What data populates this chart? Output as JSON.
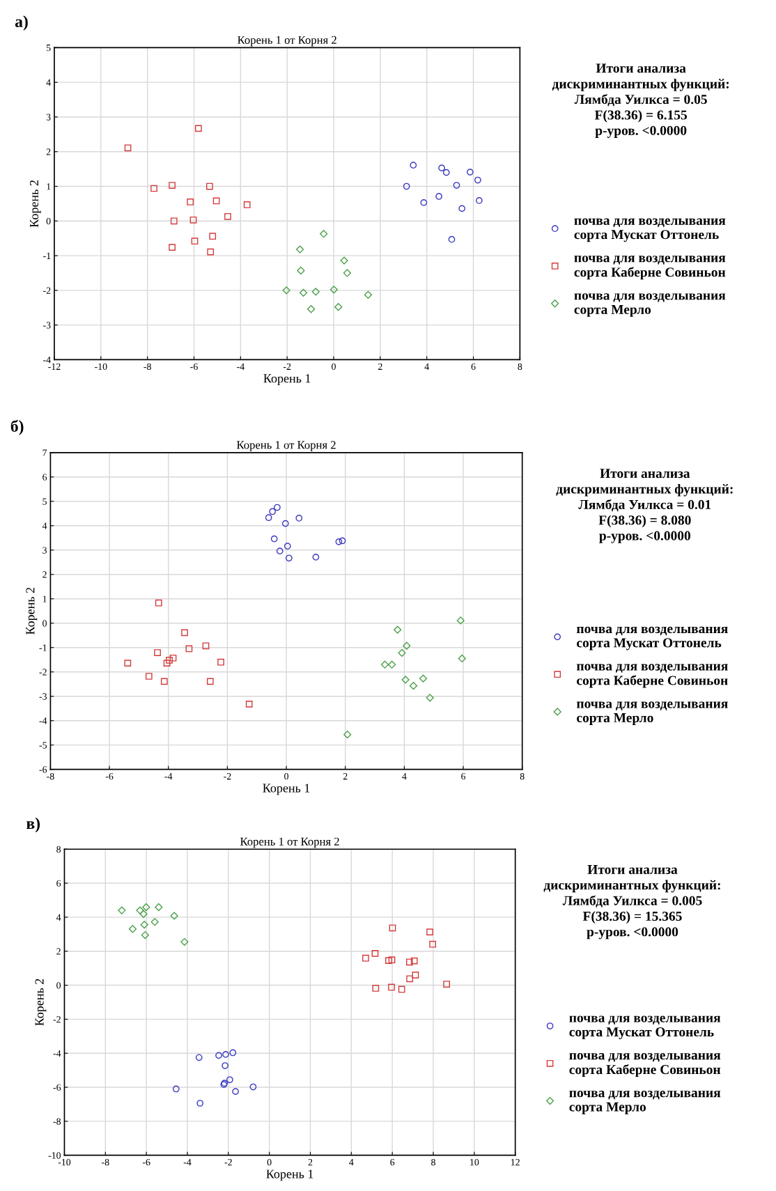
{
  "chart_data": [
    {
      "type": "scatter",
      "title": "Корень 1 от Корня 2",
      "xlabel": "Корень 1",
      "ylabel": "Корень 2",
      "annotations": [
        "а)",
        "Итоги анализа\nдискриминантных функций:\nЛямбда Уилкса = 0.05\nF(38.36) = 6.155\np-уров. <0.0000"
      ],
      "xlim": [
        -12,
        8
      ],
      "xticks": [
        -12,
        -10,
        -8,
        -6,
        -4,
        -2,
        0,
        2,
        4,
        6,
        8
      ],
      "ylim": [
        -4,
        5
      ],
      "yticks": [
        -4,
        -3,
        -2,
        -1,
        0,
        1,
        2,
        3,
        4,
        5
      ],
      "grid": true,
      "legend": "right",
      "series": [
        {
          "name": "почва для возделывания\nсорта Мускат Оттонель",
          "color": "#3a3ac0",
          "marker": "circle",
          "x": [
            3.42,
            4.64,
            4.84,
            5.86,
            6.19,
            3.13,
            5.28,
            4.52,
            3.87,
            6.25,
            5.51,
            5.07
          ],
          "values": [
            1.61,
            1.53,
            1.4,
            1.41,
            1.18,
            1.0,
            1.03,
            0.71,
            0.53,
            0.59,
            0.36,
            -0.53
          ]
        },
        {
          "name": "почва для возделывания\nсорта Каберне Совиньон",
          "color": "#d43a3a",
          "marker": "square",
          "x": [
            -8.84,
            -5.81,
            -7.72,
            -6.94,
            -5.33,
            -6.16,
            -5.04,
            -3.72,
            -6.86,
            -6.03,
            -4.55,
            -5.2,
            -5.97,
            -6.94,
            -5.29
          ],
          "values": [
            2.11,
            2.67,
            0.94,
            1.03,
            1.0,
            0.55,
            0.58,
            0.47,
            0.0,
            0.03,
            0.13,
            -0.44,
            -0.58,
            -0.76,
            -0.89
          ]
        },
        {
          "name": "почва для возделывания\nсорта Мерло",
          "color": "#4aa04a",
          "marker": "diamond",
          "x": [
            -0.43,
            -1.45,
            0.45,
            -1.41,
            0.58,
            -2.03,
            -1.3,
            -0.77,
            0.01,
            1.48,
            -0.97,
            0.2
          ],
          "values": [
            -0.37,
            -0.82,
            -1.14,
            -1.43,
            -1.5,
            -2.0,
            -2.07,
            -2.04,
            -1.98,
            -2.13,
            -2.54,
            -2.48
          ]
        }
      ]
    },
    {
      "type": "scatter",
      "title": "Корень 1 от Корня 2",
      "xlabel": "Корень 1",
      "ylabel": "Корень 2",
      "annotations": [
        "б)",
        "Итоги анализа\nдискриминантных функций:\nЛямбда Уилкса = 0.01\nF(38.36) = 8.080\np-уров. <0.0000"
      ],
      "xlim": [
        -8,
        8
      ],
      "xticks": [
        -8,
        -6,
        -4,
        -2,
        0,
        2,
        4,
        6,
        8
      ],
      "ylim": [
        -6,
        7
      ],
      "yticks": [
        -6,
        -5,
        -4,
        -3,
        -2,
        -1,
        0,
        1,
        2,
        3,
        4,
        5,
        6,
        7
      ],
      "grid": true,
      "legend": "right",
      "series": [
        {
          "name": "почва для возделывания\nсорта Мускат Оттонель",
          "color": "#3a3ac0",
          "marker": "circle",
          "x": [
            -0.31,
            -0.47,
            -0.6,
            0.43,
            -0.03,
            -0.41,
            1.78,
            1.9,
            0.04,
            -0.22,
            0.09,
            1.0
          ],
          "values": [
            4.75,
            4.58,
            4.33,
            4.31,
            4.09,
            3.46,
            3.34,
            3.38,
            3.16,
            2.96,
            2.67,
            2.71
          ]
        },
        {
          "name": "почва для возделывания\nсорта Каберне Совиньон",
          "color": "#d43a3a",
          "marker": "square",
          "x": [
            -4.33,
            -3.45,
            -2.73,
            -3.3,
            -4.37,
            -3.84,
            -3.97,
            -4.05,
            -5.38,
            -2.22,
            -4.66,
            -4.14,
            -2.58,
            -1.26
          ],
          "values": [
            0.83,
            -0.39,
            -0.93,
            -1.05,
            -1.21,
            -1.43,
            -1.52,
            -1.64,
            -1.64,
            -1.6,
            -2.18,
            -2.39,
            -2.39,
            -3.32
          ]
        },
        {
          "name": "почва для возделывания\nсорта Мерло",
          "color": "#4aa04a",
          "marker": "diamond",
          "x": [
            5.91,
            3.77,
            4.08,
            3.92,
            3.34,
            3.58,
            5.96,
            4.04,
            4.64,
            4.31,
            4.87,
            2.07
          ],
          "values": [
            0.11,
            -0.27,
            -0.93,
            -1.22,
            -1.7,
            -1.7,
            -1.45,
            -2.32,
            -2.27,
            -2.57,
            -3.06,
            -4.57
          ]
        }
      ]
    },
    {
      "type": "scatter",
      "title": "Корень 1 от Корня 2",
      "xlabel": "Корень 1",
      "ylabel": "Корень 2",
      "annotations": [
        "в)",
        "Итоги анализа\nдискриминантных функций:\nЛямбда Уилкса = 0.005\nF(38.36) = 15.365\np-уров. <0.0000"
      ],
      "xlim": [
        -10,
        12
      ],
      "xticks": [
        -10,
        -8,
        -6,
        -4,
        -2,
        0,
        2,
        4,
        6,
        8,
        10,
        12
      ],
      "ylim": [
        -10,
        8
      ],
      "yticks": [
        -10,
        -8,
        -6,
        -4,
        -2,
        0,
        2,
        4,
        6,
        8
      ],
      "grid": true,
      "legend": "right",
      "series": [
        {
          "name": "почва для возделывания\nсорта Мускат Оттонель",
          "color": "#3a3ac0",
          "marker": "circle",
          "x": [
            -3.43,
            -2.47,
            -2.13,
            -1.78,
            -2.16,
            -1.93,
            -2.22,
            -2.19,
            -0.79,
            -1.65,
            -4.55,
            -3.38
          ],
          "values": [
            -4.25,
            -4.13,
            -4.07,
            -3.97,
            -4.73,
            -5.56,
            -5.84,
            -5.76,
            -5.98,
            -6.25,
            -6.1,
            -6.94
          ]
        },
        {
          "name": "почва для возделывания\nсорта Каберне Совиньон",
          "color": "#d43a3a",
          "marker": "square",
          "x": [
            6.01,
            7.83,
            7.97,
            5.16,
            4.7,
            5.82,
            5.98,
            6.84,
            7.07,
            7.13,
            6.85,
            8.65,
            5.19,
            5.96,
            6.46
          ],
          "values": [
            3.37,
            3.13,
            2.41,
            1.87,
            1.59,
            1.45,
            1.49,
            1.36,
            1.43,
            0.6,
            0.38,
            0.06,
            -0.18,
            -0.12,
            -0.24
          ]
        },
        {
          "name": "почва для возделывания\nсорта Мерло",
          "color": "#4aa04a",
          "marker": "diamond",
          "x": [
            -7.2,
            -6.31,
            -6.01,
            -5.4,
            -6.14,
            -4.64,
            -6.1,
            -5.59,
            -6.67,
            -6.06,
            -4.14
          ],
          "values": [
            4.4,
            4.4,
            4.59,
            4.59,
            4.19,
            4.08,
            3.56,
            3.72,
            3.31,
            2.95,
            2.55
          ]
        }
      ]
    }
  ]
}
